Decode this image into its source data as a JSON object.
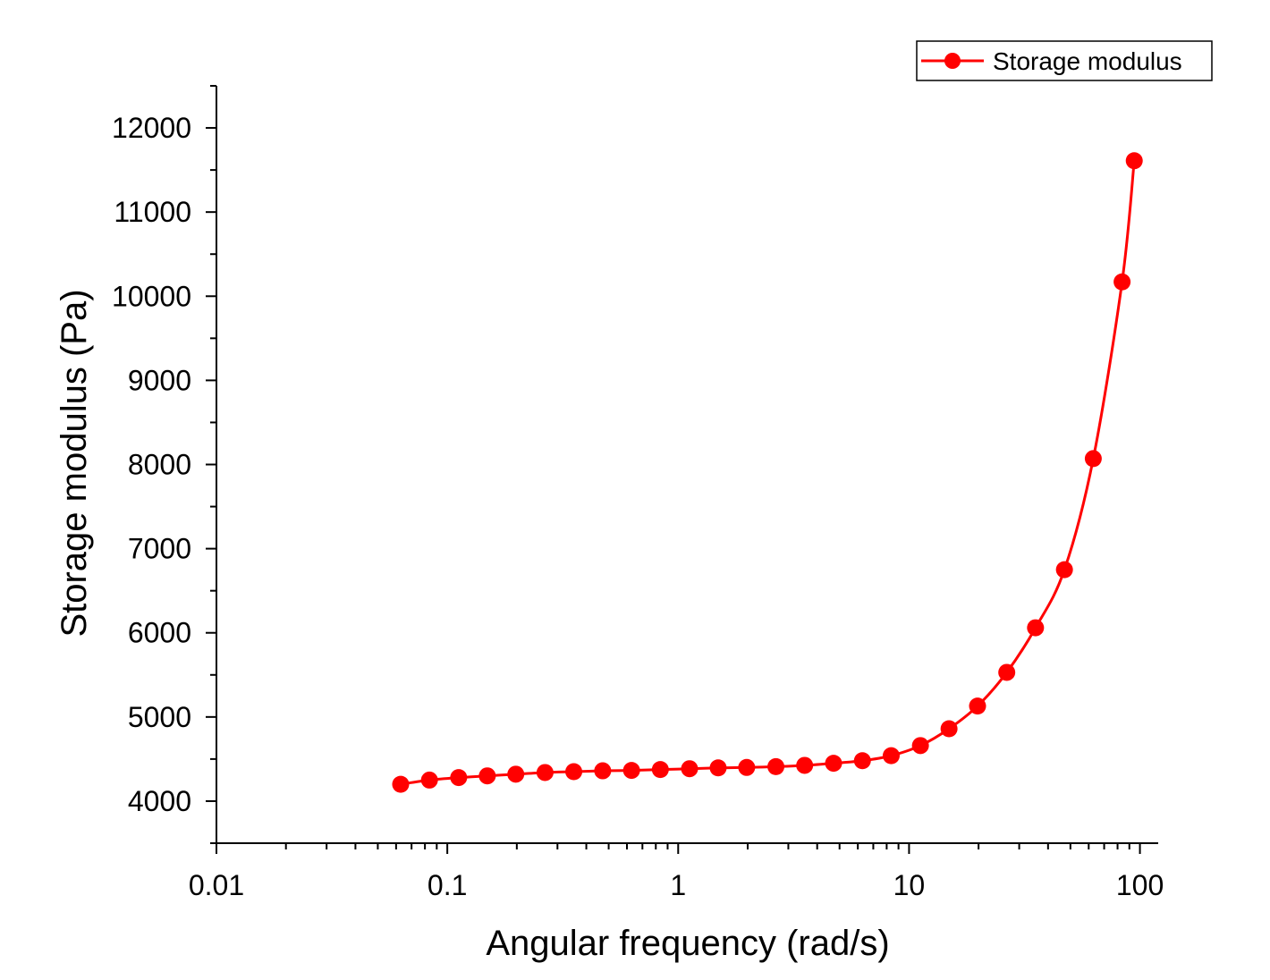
{
  "chart_data": {
    "type": "line",
    "xlabel": "Angular frequency (rad/s)",
    "ylabel": "Storage modulus (Pa)",
    "xscale": "log",
    "xlim": [
      0.01,
      120
    ],
    "ylim": [
      3500,
      12500
    ],
    "x_ticks": [
      0.01,
      0.1,
      1,
      10,
      100
    ],
    "x_tick_labels": [
      "0.01",
      "0.1",
      "1",
      "10",
      "100"
    ],
    "y_ticks": [
      4000,
      5000,
      6000,
      7000,
      8000,
      9000,
      10000,
      11000,
      12000
    ],
    "y_tick_labels": [
      "4000",
      "5000",
      "6000",
      "7000",
      "8000",
      "9000",
      "10000",
      "11000",
      "12000"
    ],
    "legend": {
      "placement": "top-right",
      "entries": [
        "Storage modulus"
      ]
    },
    "grid": false,
    "series": [
      {
        "name": "Storage modulus",
        "color": "#ff0000",
        "marker": "circle",
        "x": [
          0.0628,
          0.0837,
          0.112,
          0.149,
          0.198,
          0.265,
          0.353,
          0.471,
          0.628,
          0.837,
          1.12,
          1.49,
          1.98,
          2.65,
          3.53,
          4.71,
          6.28,
          8.37,
          11.2,
          14.9,
          19.8,
          26.5,
          35.3,
          47.1,
          62.8,
          83.7,
          94.5
        ],
        "values": [
          4200,
          4250,
          4280,
          4300,
          4320,
          4340,
          4350,
          4360,
          4365,
          4375,
          4385,
          4395,
          4400,
          4410,
          4425,
          4450,
          4480,
          4540,
          4660,
          4860,
          5130,
          5530,
          6060,
          6750,
          8070,
          10170,
          11610
        ]
      }
    ]
  }
}
